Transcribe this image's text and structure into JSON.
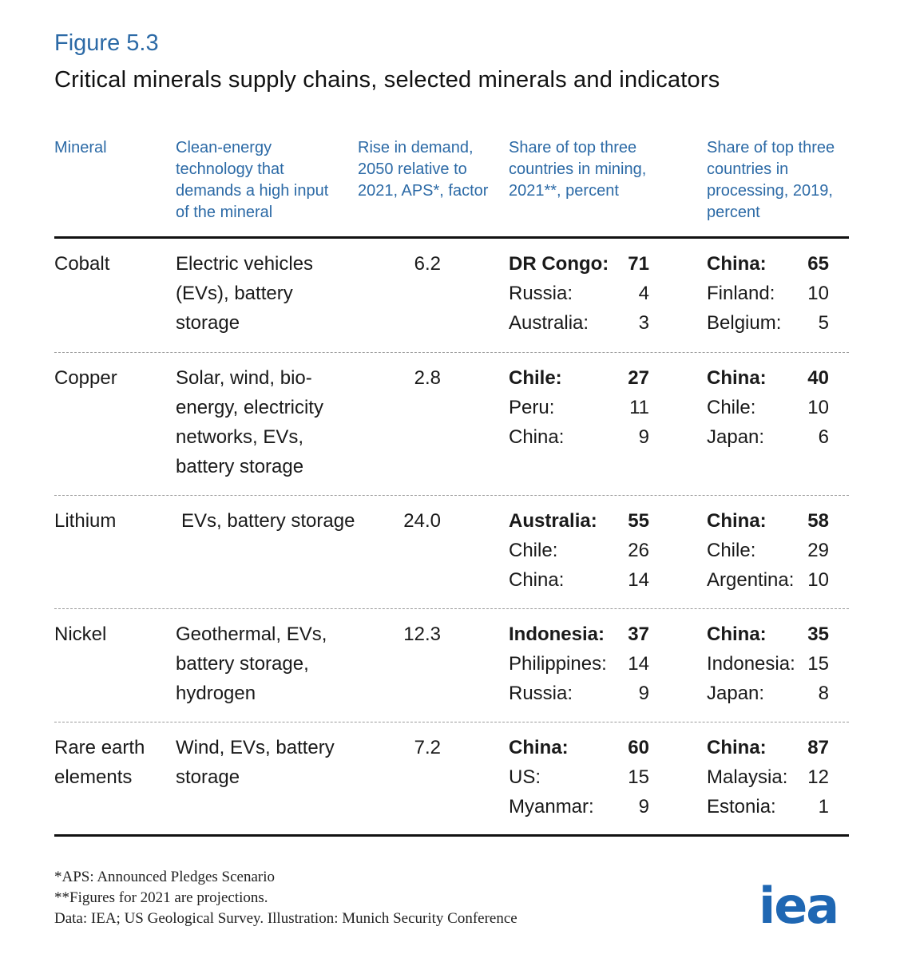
{
  "figure_label": "Figure 5.3",
  "title": "Critical minerals supply chains, selected minerals and indicators",
  "headers": {
    "mineral": "Mineral",
    "technology": "Clean-energy technology that demands a high input of the mineral",
    "demand": "Rise in demand, 2050 relative to 2021, APS*, factor",
    "mining": "Share of top three countries in mining, 2021**, percent",
    "processing": "Share of top three countries in processing, 2019, percent"
  },
  "rows": [
    {
      "mineral": "Cobalt",
      "technology": "Electric vehicles (EVs), battery storage",
      "factor": "6.2",
      "mining": [
        {
          "country": "DR Congo:",
          "value": "71"
        },
        {
          "country": "Russia:",
          "value": "4"
        },
        {
          "country": "Australia:",
          "value": "3"
        }
      ],
      "processing": [
        {
          "country": "China:",
          "value": "65"
        },
        {
          "country": "Finland:",
          "value": "10"
        },
        {
          "country": "Belgium:",
          "value": "5"
        }
      ]
    },
    {
      "mineral": "Copper",
      "technology": "Solar, wind, bio-energy, electricity networks, EVs, battery storage",
      "factor": "2.8",
      "mining": [
        {
          "country": "Chile:",
          "value": "27"
        },
        {
          "country": "Peru:",
          "value": "11"
        },
        {
          "country": "China:",
          "value": "9"
        }
      ],
      "processing": [
        {
          "country": "China:",
          "value": "40"
        },
        {
          "country": "Chile:",
          "value": "10"
        },
        {
          "country": "Japan:",
          "value": "6"
        }
      ]
    },
    {
      "mineral": "Lithium",
      "technology": "EVs, battery storage",
      "factor": "24.0",
      "mining": [
        {
          "country": "Australia:",
          "value": "55"
        },
        {
          "country": "Chile:",
          "value": "26"
        },
        {
          "country": "China:",
          "value": "14"
        }
      ],
      "processing": [
        {
          "country": "China:",
          "value": "58"
        },
        {
          "country": "Chile:",
          "value": "29"
        },
        {
          "country": "Argentina:",
          "value": "10"
        }
      ]
    },
    {
      "mineral": "Nickel",
      "technology": "Geothermal, EVs, battery storage, hydrogen",
      "factor": "12.3",
      "mining": [
        {
          "country": "Indonesia:",
          "value": "37"
        },
        {
          "country": "Philippines:",
          "value": "14"
        },
        {
          "country": "Russia:",
          "value": "9"
        }
      ],
      "processing": [
        {
          "country": "China:",
          "value": "35"
        },
        {
          "country": "Indonesia:",
          "value": "15"
        },
        {
          "country": "Japan:",
          "value": "8"
        }
      ]
    },
    {
      "mineral": "Rare earth elements",
      "technology": "Wind, EVs, battery storage",
      "factor": "7.2",
      "mining": [
        {
          "country": "China:",
          "value": "60"
        },
        {
          "country": "US:",
          "value": "15"
        },
        {
          "country": "Myanmar:",
          "value": "9"
        }
      ],
      "processing": [
        {
          "country": "China:",
          "value": "87"
        },
        {
          "country": "Malaysia:",
          "value": "12"
        },
        {
          "country": "Estonia:",
          "value": "1"
        }
      ]
    }
  ],
  "footnotes": [
    "*APS: Announced Pledges Scenario",
    "**Figures for 2021 are projections.",
    "Data: IEA; US Geological Survey. Illustration: Munich Security Conference"
  ],
  "logo_text": "iea",
  "colors": {
    "accent": "#2c6aa6",
    "logo": "#1f67b3",
    "text": "#1a1a1a"
  }
}
